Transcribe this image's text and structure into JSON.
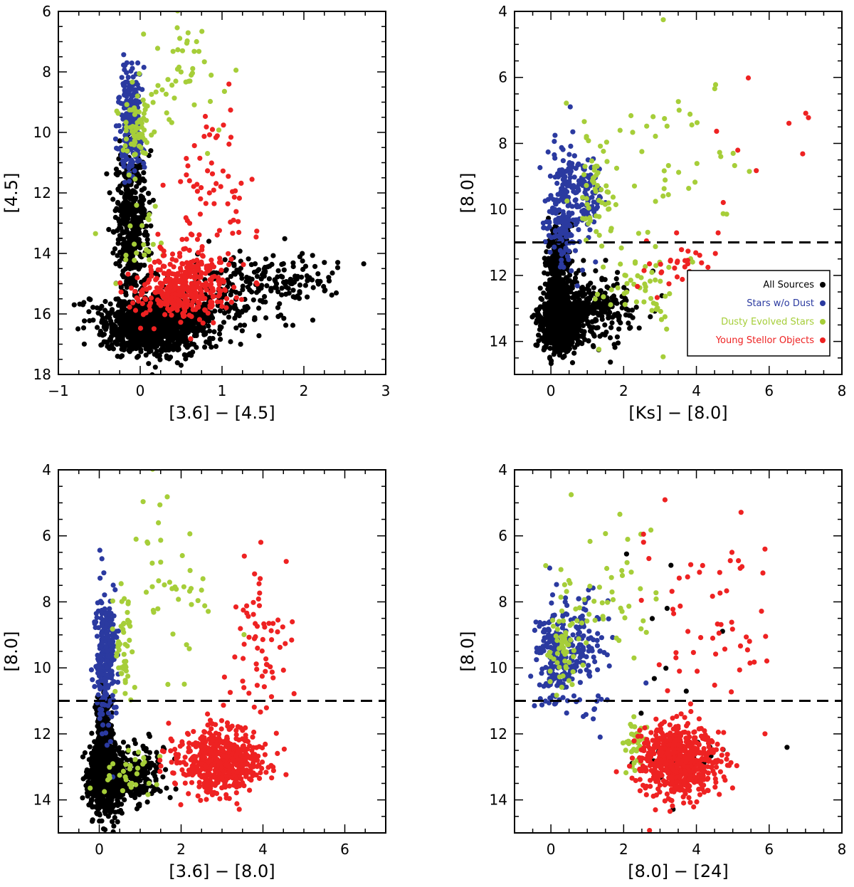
{
  "colors": {
    "all_sources": "#000000",
    "stars_no_dust": "#2b3aa0",
    "dusty_evolved": "#a6ce39",
    "ysos": "#ee2222"
  },
  "chart_data": [
    {
      "id": "p1",
      "type": "scatter",
      "xlabel": "[3.6] − [4.5]",
      "ylabel": "[4.5]",
      "xlim": [
        -1,
        3
      ],
      "ylim": [
        18,
        6
      ],
      "xticks": [
        -1,
        0,
        1,
        2,
        3
      ],
      "yticks": [
        6,
        8,
        10,
        12,
        14,
        16,
        18
      ],
      "xtick_labels": [
        "−1",
        "0",
        "1",
        "2",
        "3"
      ],
      "ytick_labels": [
        "6",
        "8",
        "10",
        "12",
        "14",
        "16",
        "18"
      ],
      "threshold": null,
      "populations": [
        {
          "class": "all_sources",
          "description": "dense cloud",
          "count": 2000,
          "seed": 11,
          "regions": [
            {
              "w": 0.55,
              "cx": 0.15,
              "cy": 16.4,
              "sx": 0.3,
              "sy": 0.45
            },
            {
              "w": 0.25,
              "cx": -0.1,
              "cy": 13.0,
              "sx": 0.1,
              "sy": 1.2
            },
            {
              "w": 0.12,
              "cx": 0.7,
              "cy": 15.8,
              "sx": 0.5,
              "sy": 0.6
            },
            {
              "w": 0.08,
              "cx": 1.6,
              "cy": 14.9,
              "sx": 0.4,
              "sy": 0.4
            }
          ]
        },
        {
          "class": "stars_no_dust",
          "description": "upper vertical branch",
          "count": 230,
          "seed": 12,
          "regions": [
            {
              "w": 1,
              "cx": -0.12,
              "cy": 9.6,
              "sx": 0.07,
              "sy": 0.9
            }
          ]
        },
        {
          "class": "dusty_evolved",
          "description": "scattered points",
          "count": 130,
          "seed": 13,
          "regions": [
            {
              "w": 0.45,
              "cx": -0.05,
              "cy": 10.0,
              "sx": 0.1,
              "sy": 0.6
            },
            {
              "w": 0.35,
              "cx": 0.5,
              "cy": 8.3,
              "sx": 0.25,
              "sy": 1.0
            },
            {
              "w": 0.2,
              "cx": 0.0,
              "cy": 13.5,
              "sx": 0.15,
              "sy": 0.8
            }
          ]
        },
        {
          "class": "ysos",
          "description": "concentration near x≈0.5, y≈15",
          "count": 450,
          "seed": 14,
          "regions": [
            {
              "w": 0.85,
              "cx": 0.5,
              "cy": 15.2,
              "sx": 0.28,
              "sy": 0.55
            },
            {
              "w": 0.15,
              "cx": 0.85,
              "cy": 12.5,
              "sx": 0.25,
              "sy": 1.6
            }
          ]
        }
      ]
    },
    {
      "id": "p2",
      "type": "scatter",
      "xlabel": "[Ks] − [8.0]",
      "ylabel": "[8.0]",
      "xlim": [
        -1,
        8
      ],
      "ylim": [
        15,
        4
      ],
      "xticks": [
        0,
        2,
        4,
        6,
        8
      ],
      "yticks": [
        4,
        6,
        8,
        10,
        12,
        14
      ],
      "xtick_labels": [
        "0",
        "2",
        "4",
        "6",
        "8"
      ],
      "ytick_labels": [
        "4",
        "6",
        "8",
        "10",
        "12",
        "14"
      ],
      "threshold": 11,
      "legend": {
        "position": "lower-right",
        "items": [
          {
            "label": "All Sources",
            "class": "all_sources"
          },
          {
            "label": "Stars w/o Dust",
            "class": "stars_no_dust"
          },
          {
            "label": "Dusty Evolved Stars",
            "class": "dusty_evolved"
          },
          {
            "label": "Young Stellor Objects",
            "class": "ysos"
          }
        ]
      },
      "populations": [
        {
          "class": "all_sources",
          "description": "dense cloud",
          "count": 1300,
          "seed": 21,
          "regions": [
            {
              "w": 0.55,
              "cx": 0.3,
              "cy": 13.4,
              "sx": 0.28,
              "sy": 0.45
            },
            {
              "w": 0.25,
              "cx": 0.2,
              "cy": 11.8,
              "sx": 0.15,
              "sy": 0.7
            },
            {
              "w": 0.2,
              "cx": 1.2,
              "cy": 13.0,
              "sx": 0.6,
              "sy": 0.5
            }
          ]
        },
        {
          "class": "stars_no_dust",
          "description": "vertical branch above threshold",
          "count": 300,
          "seed": 22,
          "regions": [
            {
              "w": 0.7,
              "cx": 0.35,
              "cy": 9.9,
              "sx": 0.22,
              "sy": 0.9
            },
            {
              "w": 0.3,
              "cx": 1.0,
              "cy": 9.6,
              "sx": 0.25,
              "sy": 0.6
            }
          ]
        },
        {
          "class": "dusty_evolved",
          "description": "scattered points",
          "count": 150,
          "seed": 23,
          "regions": [
            {
              "w": 0.3,
              "cx": 1.3,
              "cy": 9.5,
              "sx": 0.25,
              "sy": 0.8
            },
            {
              "w": 0.4,
              "cx": 3.0,
              "cy": 8.5,
              "sx": 1.2,
              "sy": 1.5
            },
            {
              "w": 0.3,
              "cx": 2.2,
              "cy": 12.5,
              "sx": 0.7,
              "sy": 0.6
            }
          ]
        },
        {
          "class": "ysos",
          "description": "sparse points",
          "count": 40,
          "seed": 24,
          "regions": [
            {
              "w": 0.6,
              "cx": 3.5,
              "cy": 11.8,
              "sx": 0.6,
              "sy": 0.5
            },
            {
              "w": 0.4,
              "cx": 6.0,
              "cy": 8.0,
              "sx": 0.8,
              "sy": 1.5
            }
          ]
        }
      ]
    },
    {
      "id": "p3",
      "type": "scatter",
      "xlabel": "[3.6] − [8.0]",
      "ylabel": "[8.0]",
      "xlim": [
        -1,
        7
      ],
      "ylim": [
        15,
        4
      ],
      "xticks": [
        0,
        2,
        4,
        6
      ],
      "yticks": [
        4,
        6,
        8,
        10,
        12,
        14
      ],
      "xtick_labels": [
        "0",
        "2",
        "4",
        "6"
      ],
      "ytick_labels": [
        "4",
        "6",
        "8",
        "10",
        "12",
        "14"
      ],
      "threshold": 11,
      "populations": [
        {
          "class": "all_sources",
          "description": "dense cloud",
          "count": 1300,
          "seed": 31,
          "regions": [
            {
              "w": 0.6,
              "cx": 0.15,
              "cy": 13.3,
              "sx": 0.2,
              "sy": 0.55
            },
            {
              "w": 0.2,
              "cx": 0.1,
              "cy": 11.8,
              "sx": 0.1,
              "sy": 0.6
            },
            {
              "w": 0.2,
              "cx": 0.8,
              "cy": 13.2,
              "sx": 0.4,
              "sy": 0.4
            }
          ]
        },
        {
          "class": "stars_no_dust",
          "description": "vertical branch above threshold",
          "count": 260,
          "seed": 32,
          "regions": [
            {
              "w": 1,
              "cx": 0.15,
              "cy": 9.6,
              "sx": 0.12,
              "sy": 1.0
            }
          ]
        },
        {
          "class": "dusty_evolved",
          "description": "scattered points",
          "count": 120,
          "seed": 33,
          "regions": [
            {
              "w": 0.35,
              "cx": 0.6,
              "cy": 9.5,
              "sx": 0.12,
              "sy": 0.8
            },
            {
              "w": 0.4,
              "cx": 1.7,
              "cy": 7.5,
              "sx": 0.7,
              "sy": 1.3
            },
            {
              "w": 0.25,
              "cx": 0.8,
              "cy": 13.0,
              "sx": 0.4,
              "sy": 0.5
            }
          ]
        },
        {
          "class": "ysos",
          "description": "concentration near x≈3, y≈12.8",
          "count": 650,
          "seed": 34,
          "regions": [
            {
              "w": 0.88,
              "cx": 3.0,
              "cy": 12.8,
              "sx": 0.5,
              "sy": 0.5
            },
            {
              "w": 0.12,
              "cx": 3.9,
              "cy": 9.5,
              "sx": 0.4,
              "sy": 1.5
            }
          ]
        }
      ]
    },
    {
      "id": "p4",
      "type": "scatter",
      "xlabel": "[8.0] − [24]",
      "ylabel": "[8.0]",
      "xlim": [
        -1,
        8
      ],
      "ylim": [
        15,
        4
      ],
      "xticks": [
        0,
        2,
        4,
        6,
        8
      ],
      "yticks": [
        4,
        6,
        8,
        10,
        12,
        14
      ],
      "xtick_labels": [
        "0",
        "2",
        "4",
        "6",
        "8"
      ],
      "ytick_labels": [
        "4",
        "6",
        "8",
        "10",
        "12",
        "14"
      ],
      "threshold": 11,
      "populations": [
        {
          "class": "all_sources",
          "description": "sparse points",
          "count": 30,
          "seed": 41,
          "regions": [
            {
              "w": 0.6,
              "cx": 3.5,
              "cy": 12.5,
              "sx": 0.6,
              "sy": 0.7
            },
            {
              "w": 0.4,
              "cx": 4.0,
              "cy": 9.0,
              "sx": 1.5,
              "sy": 2.0
            }
          ]
        },
        {
          "class": "stars_no_dust",
          "description": "cluster",
          "count": 300,
          "seed": 42,
          "regions": [
            {
              "w": 0.7,
              "cx": 0.2,
              "cy": 9.6,
              "sx": 0.35,
              "sy": 0.8
            },
            {
              "w": 0.3,
              "cx": 0.9,
              "cy": 9.5,
              "sx": 0.4,
              "sy": 0.9
            }
          ]
        },
        {
          "class": "dusty_evolved",
          "description": "scattered points",
          "count": 140,
          "seed": 43,
          "regions": [
            {
              "w": 0.45,
              "cx": 0.3,
              "cy": 9.3,
              "sx": 0.25,
              "sy": 0.7
            },
            {
              "w": 0.3,
              "cx": 1.5,
              "cy": 7.5,
              "sx": 0.6,
              "sy": 1.2
            },
            {
              "w": 0.25,
              "cx": 2.3,
              "cy": 12.3,
              "sx": 0.15,
              "sy": 0.4
            }
          ]
        },
        {
          "class": "ysos",
          "description": "concentration near x≈3.5, y≈12.8",
          "count": 700,
          "seed": 44,
          "regions": [
            {
              "w": 0.9,
              "cx": 3.5,
              "cy": 12.8,
              "sx": 0.55,
              "sy": 0.55
            },
            {
              "w": 0.1,
              "cx": 4.5,
              "cy": 9.0,
              "sx": 1.0,
              "sy": 1.8
            }
          ]
        }
      ]
    }
  ]
}
